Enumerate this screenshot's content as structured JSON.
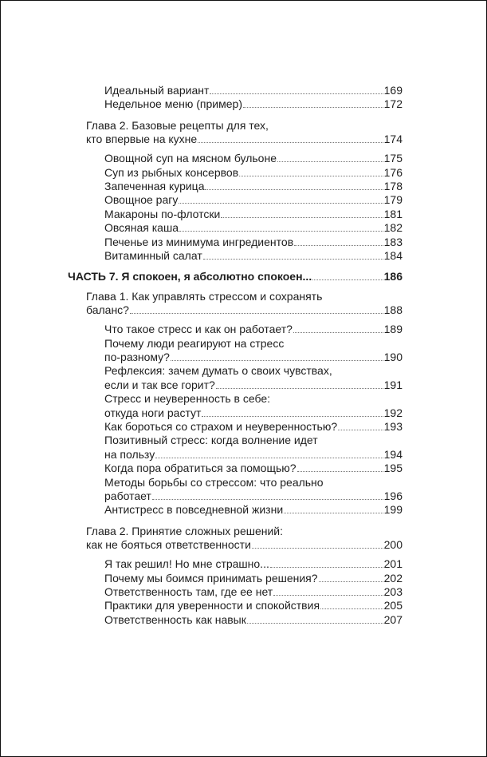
{
  "toc": [
    {
      "level": 2,
      "lines": [
        "Идеальный вариант"
      ],
      "page": "169"
    },
    {
      "level": 2,
      "lines": [
        "Недельное меню (пример)"
      ],
      "page": "172"
    },
    {
      "level": 1,
      "lines": [
        "Глава 2. Базовые рецепты для тех,",
        "кто впервые  на кухне"
      ],
      "page": "174"
    },
    {
      "level": 2,
      "lines": [
        "Овощной суп на мясном бульоне"
      ],
      "page": "175"
    },
    {
      "level": 2,
      "lines": [
        "Суп из рыбных консервов"
      ],
      "page": "176"
    },
    {
      "level": 2,
      "lines": [
        "Запеченная курица"
      ],
      "page": "178"
    },
    {
      "level": 2,
      "lines": [
        "Овощное рагу"
      ],
      "page": "179"
    },
    {
      "level": 2,
      "lines": [
        "Макароны по-флотски"
      ],
      "page": "181"
    },
    {
      "level": 2,
      "lines": [
        "Овсяная каша"
      ],
      "page": "182"
    },
    {
      "level": 2,
      "lines": [
        "Печенье из минимума ингредиентов"
      ],
      "page": "183"
    },
    {
      "level": 2,
      "lines": [
        "Витаминный салат"
      ],
      "page": "184"
    },
    {
      "level": 0,
      "lines": [
        "ЧАСТЬ 7. Я спокоен, я абсолютно спокоен... "
      ],
      "page": "186"
    },
    {
      "level": 1,
      "lines": [
        "Глава 1. Как управлять стрессом и сохранять",
        "баланс?"
      ],
      "page": "188"
    },
    {
      "level": 2,
      "lines": [
        "Что такое стресс и как он работает?"
      ],
      "page": "189"
    },
    {
      "level": 2,
      "lines": [
        "Почему люди реагируют на стресс",
        "по-разному?"
      ],
      "page": "190"
    },
    {
      "level": 2,
      "lines": [
        "Рефлексия: зачем думать о своих чувствах,",
        "если и так все горит?"
      ],
      "page": "191"
    },
    {
      "level": 2,
      "lines": [
        "Стресс и неуверенность в себе:",
        "откуда ноги растут"
      ],
      "page": "192"
    },
    {
      "level": 2,
      "lines": [
        "Как бороться со страхом и неуверенностью?"
      ],
      "page": "193"
    },
    {
      "level": 2,
      "lines": [
        "Позитивный стресс: когда волнение идет",
        "на пользу"
      ],
      "page": "194"
    },
    {
      "level": 2,
      "lines": [
        "Когда пора обратиться за помощью?"
      ],
      "page": "195"
    },
    {
      "level": 2,
      "lines": [
        "Методы борьбы со стрессом: что реально",
        "работает"
      ],
      "page": "196"
    },
    {
      "level": 2,
      "lines": [
        "Антистресс в повседневной жизни"
      ],
      "page": "199"
    },
    {
      "level": 1,
      "lines": [
        "Глава 2. Принятие сложных решений:",
        "как не бояться ответственности"
      ],
      "page": "200"
    },
    {
      "level": 2,
      "lines": [
        "Я так решил! Но мне страшно..."
      ],
      "page": "201"
    },
    {
      "level": 2,
      "lines": [
        "Почему мы боимся принимать решения?"
      ],
      "page": "202"
    },
    {
      "level": 2,
      "lines": [
        "Ответственность там, где ее нет"
      ],
      "page": "203"
    },
    {
      "level": 2,
      "lines": [
        "Практики для уверенности и спокойствия"
      ],
      "page": "205"
    },
    {
      "level": 2,
      "lines": [
        "Ответственность как навык"
      ],
      "page": "207"
    }
  ]
}
